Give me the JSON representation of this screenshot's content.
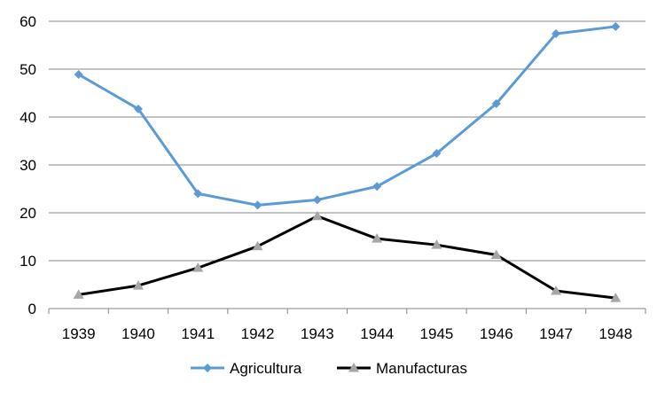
{
  "chart_data": {
    "type": "line",
    "categories": [
      "1939",
      "1940",
      "1941",
      "1942",
      "1943",
      "1944",
      "1945",
      "1946",
      "1947",
      "1948"
    ],
    "series": [
      {
        "name": "Agricultura",
        "values": [
          48.9,
          41.7,
          24.0,
          21.6,
          22.7,
          25.5,
          32.4,
          42.8,
          57.4,
          58.9
        ],
        "color": "#5B9BD5",
        "marker": "diamond"
      },
      {
        "name": "Manufacturas",
        "values": [
          2.9,
          4.8,
          8.5,
          13.0,
          19.3,
          14.6,
          13.3,
          11.2,
          3.7,
          2.2
        ],
        "color": "#000000",
        "marker": "triangle",
        "marker_color": "#A6A6A6"
      }
    ],
    "ylim": [
      0,
      60
    ],
    "yticks": [
      0,
      10,
      20,
      30,
      40,
      50,
      60
    ],
    "grid": "horizontal",
    "legend_position": "bottom"
  }
}
